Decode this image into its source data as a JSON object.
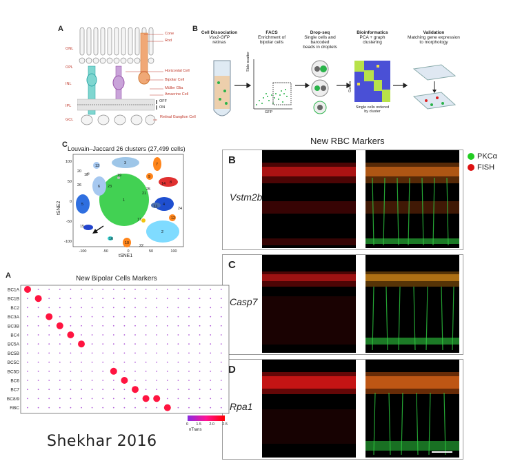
{
  "panelA_top": {
    "letter": "A",
    "layers": [
      "ONL",
      "OPL",
      "INL",
      "IPL",
      "GCL"
    ],
    "cell_labels": [
      "Cone",
      "Rod",
      "Horizontal Cell",
      "Bipolar Cell",
      "Müller Glia",
      "Amacrine Cell",
      "Retinal Ganglion Cell"
    ],
    "ipl_labels": [
      "OFF",
      "ON"
    ]
  },
  "panelB_top": {
    "letter": "B",
    "steps": [
      {
        "title": "Cell Dissociation",
        "sub1": "Vsx2-GFP",
        "sub2": "retinas"
      },
      {
        "title": "FACS",
        "sub1": "Enrichment of",
        "sub2": "bipolar cells"
      },
      {
        "title": "Drop-seq",
        "sub1": "Single cells and",
        "sub2": "barcoded",
        "sub3": "beads in droplets"
      },
      {
        "title": "Bioinformatics",
        "sub1": "PCA + graph",
        "sub2": "clustering"
      },
      {
        "title": "Validation",
        "sub1": "Matching gene expression",
        "sub2": "to morphology"
      }
    ],
    "facs_y": "Side scatter",
    "facs_x": "GFP",
    "heat_y": "Genes",
    "heat_x1": "Single cells ordered",
    "heat_x2": "by cluster"
  },
  "panelC_tsne": {
    "letter": "C",
    "title": "Louvain–Jaccard 26 clusters (27,499 cells)",
    "xlabel": "tSNE1",
    "ylabel": "tSNE2",
    "xticks": [
      "-100",
      "-50",
      "0",
      "50",
      "100"
    ],
    "yticks": [
      "100",
      "50",
      "0",
      "-50",
      "-100"
    ],
    "cluster_labels": [
      "1",
      "2",
      "3",
      "4",
      "5",
      "6",
      "7",
      "8",
      "9",
      "10",
      "11",
      "12",
      "13",
      "14",
      "15",
      "16",
      "17",
      "18",
      "19",
      "20",
      "21",
      "22",
      "23",
      "24",
      "25",
      "26"
    ]
  },
  "rbc_header": "New RBC Markers",
  "rbc_panels": [
    {
      "letter": "B",
      "gene": "Vstm2b"
    },
    {
      "letter": "C",
      "gene": "Casp7"
    },
    {
      "letter": "D",
      "gene": "Rpa1"
    }
  ],
  "rbc_legend": [
    {
      "label": "PKCα",
      "color": "#22cc22"
    },
    {
      "label": "FISH",
      "color": "#dd1111"
    }
  ],
  "dotplot": {
    "letter": "A",
    "title": "New Bipolar Cells Markers",
    "rows": [
      "BC1A",
      "BC1B",
      "BC2",
      "BC3A",
      "BC3B",
      "BC4",
      "BC5A",
      "BC5B",
      "BC5C",
      "BC5D",
      "BC6",
      "BC7",
      "BC8/9",
      "RBC"
    ],
    "colorbar_ticks": [
      "0",
      "1.5",
      "2.0",
      "2.5"
    ],
    "colorbar_label": "nTrans",
    "colors": {
      "low": "#8a2be2",
      "mid": "#ff1493",
      "high": "#ff0000"
    }
  },
  "credit": "Shekhar 2016"
}
